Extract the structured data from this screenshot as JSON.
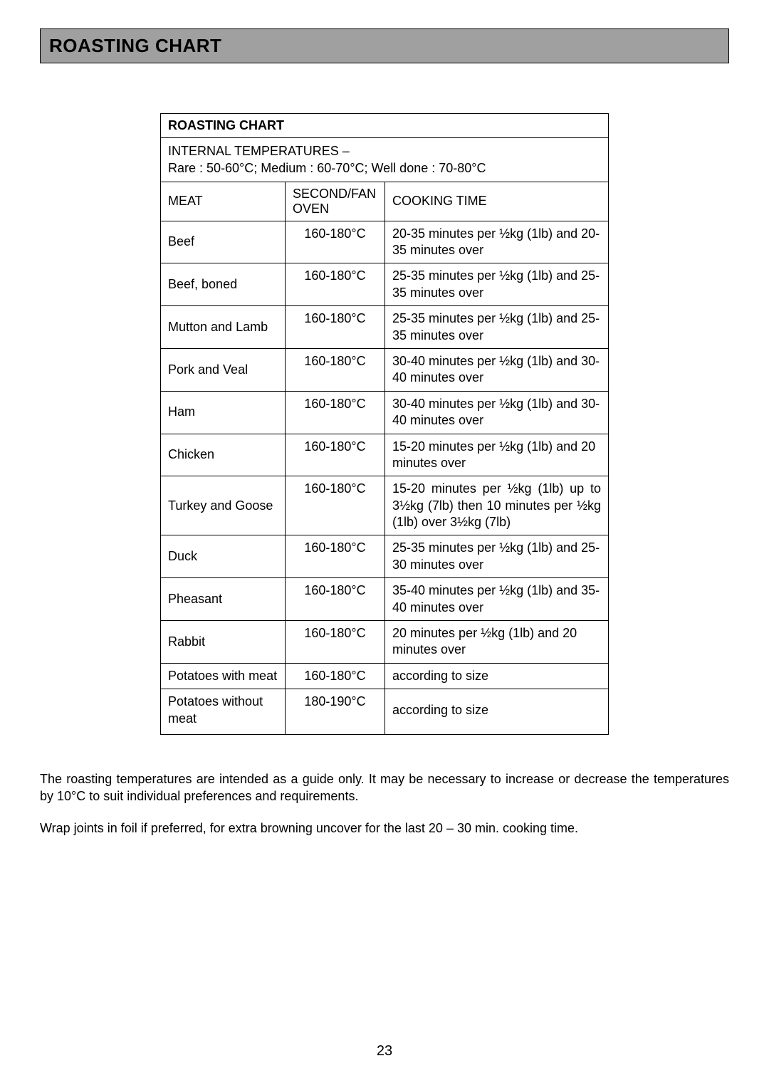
{
  "header": {
    "title": "ROASTING CHART"
  },
  "table": {
    "title": "ROASTING CHART",
    "subheader_line1": "INTERNAL TEMPERATURES –",
    "subheader_line2": "Rare : 50-60°C; Medium : 60-70°C; Well done : 70-80°C",
    "columns": {
      "meat": "MEAT",
      "oven": "SECOND/FAN OVEN",
      "time": "COOKING TIME"
    },
    "rows": [
      {
        "meat": "Beef",
        "oven": "160-180°C",
        "time": "20-35 minutes per ½kg (1lb) and 20-35 minutes over"
      },
      {
        "meat": "Beef, boned",
        "oven": "160-180°C",
        "time": "25-35 minutes per ½kg (1lb) and 25-35 minutes over"
      },
      {
        "meat": "Mutton and Lamb",
        "oven": "160-180°C",
        "time": "25-35 minutes per ½kg (1lb) and 25-35 minutes over"
      },
      {
        "meat": "Pork and Veal",
        "oven": "160-180°C",
        "time": "30-40 minutes per ½kg (1lb) and 30-40 minutes over"
      },
      {
        "meat": "Ham",
        "oven": "160-180°C",
        "time": "30-40 minutes per ½kg (1lb) and 30-40 minutes over"
      },
      {
        "meat": "Chicken",
        "oven": "160-180°C",
        "time": "15-20 minutes per ½kg (1lb) and 20 minutes over"
      },
      {
        "meat": "Turkey and Goose",
        "oven": "160-180°C",
        "time": "15-20 minutes per ½kg (1lb) up to 3½kg (7lb) then 10 minutes per ½kg (1lb) over  3½kg (7lb)",
        "justify": true
      },
      {
        "meat": "Duck",
        "oven": "160-180°C",
        "time": "25-35 minutes per ½kg (1lb) and 25-30 minutes over"
      },
      {
        "meat": "Pheasant",
        "oven": "160-180°C",
        "time": "35-40 minutes per ½kg (1lb) and 35-40 minutes over"
      },
      {
        "meat": "Rabbit",
        "oven": "160-180°C",
        "time": "20 minutes per ½kg (1lb) and 20 minutes over"
      },
      {
        "meat": "Potatoes with meat",
        "oven": "160-180°C",
        "time": "according to size"
      },
      {
        "meat": "Potatoes without meat",
        "oven": "180-190°C",
        "time": "according to size"
      }
    ]
  },
  "notes": {
    "p1": "The roasting temperatures are intended as a guide only. It may be necessary to increase or decrease the temperatures by 10°C to suit individual preferences and requirements.",
    "p2": "Wrap joints in foil if preferred, for extra browning uncover for the last 20 – 30 min. cooking time."
  },
  "page_number": "23"
}
